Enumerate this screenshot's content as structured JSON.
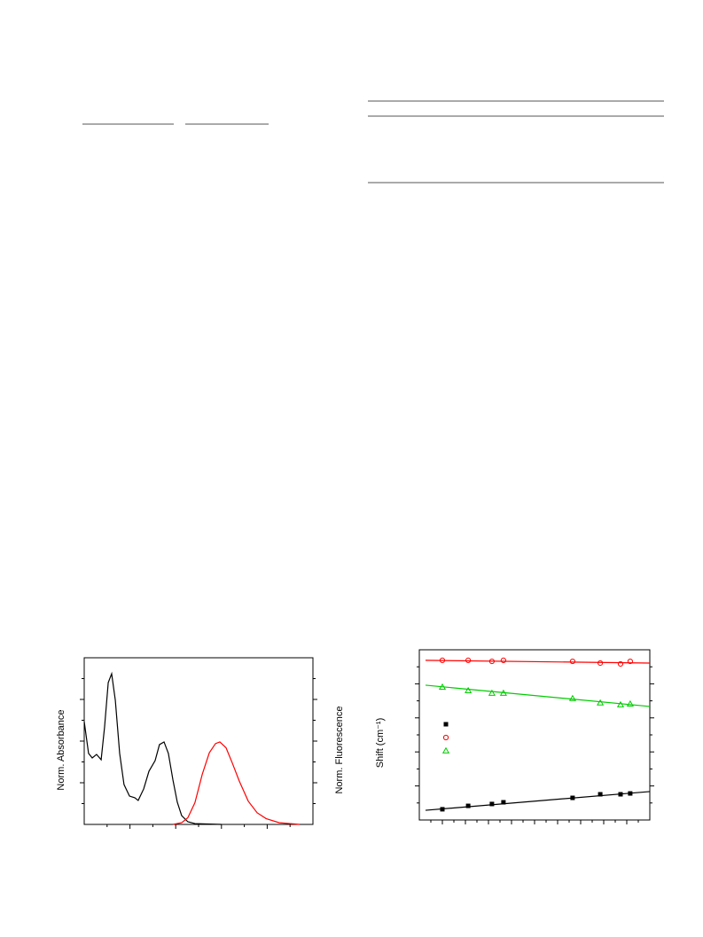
{
  "charts": [
    {
      "type": "line",
      "ylabel": "Norm. Absorbance",
      "y2label": "Norm. Fluorescence",
      "xlim": [
        0,
        10
      ],
      "ylim": [
        0,
        1
      ],
      "series": [
        {
          "color": "#000000",
          "x": [
            0,
            0.19,
            0.35,
            0.54,
            0.74,
            0.89,
            1.05,
            1.2,
            1.36,
            1.55,
            1.74,
            1.98,
            2.21,
            2.36,
            2.6,
            2.83,
            3.1,
            3.29,
            3.49,
            3.68,
            3.88,
            4.07,
            4.26,
            4.53,
            4.84,
            6.0
          ],
          "values": [
            0.617,
            0.426,
            0.399,
            0.42,
            0.388,
            0.585,
            0.851,
            0.904,
            0.745,
            0.426,
            0.239,
            0.17,
            0.16,
            0.144,
            0.213,
            0.319,
            0.383,
            0.479,
            0.495,
            0.426,
            0.266,
            0.133,
            0.053,
            0.016,
            0.005,
            0
          ]
        },
        {
          "color": "#ff0000",
          "x": [
            3.88,
            4.26,
            4.53,
            4.84,
            5.16,
            5.47,
            5.74,
            5.93,
            6.2,
            6.47,
            6.78,
            7.17,
            7.56,
            7.95,
            8.53,
            9.42
          ],
          "values": [
            0,
            0.01,
            0.04,
            0.13,
            0.3,
            0.43,
            0.485,
            0.495,
            0.46,
            0.37,
            0.26,
            0.14,
            0.07,
            0.035,
            0.01,
            0
          ]
        }
      ]
    },
    {
      "type": "scatter",
      "ylabel": "Shift (cm⁻¹)",
      "xlim": [
        0,
        10
      ],
      "ylim": [
        0,
        10
      ],
      "x": [
        1.0,
        2.12,
        3.15,
        3.65,
        6.65,
        7.85,
        8.73,
        9.15
      ],
      "series": [
        {
          "color": "#000000",
          "marker": "square",
          "values": [
            0.63,
            0.83,
            0.94,
            1.04,
            1.3,
            1.51,
            1.51,
            1.56
          ],
          "fit": {
            "x": [
              0.27,
              10
            ],
            "values": [
              0.57,
              1.67
            ]
          }
        },
        {
          "color": "#ff0000",
          "marker": "circle",
          "values": [
            9.38,
            9.38,
            9.32,
            9.38,
            9.32,
            9.22,
            9.17,
            9.32
          ],
          "fit": {
            "x": [
              0.27,
              10
            ],
            "values": [
              9.38,
              9.22
            ]
          }
        },
        {
          "color": "#00cc00",
          "marker": "triangle",
          "values": [
            7.81,
            7.6,
            7.45,
            7.45,
            7.14,
            6.88,
            6.77,
            6.82
          ],
          "fit": {
            "x": [
              0.27,
              10
            ],
            "values": [
              7.92,
              6.67
            ]
          }
        }
      ]
    }
  ]
}
